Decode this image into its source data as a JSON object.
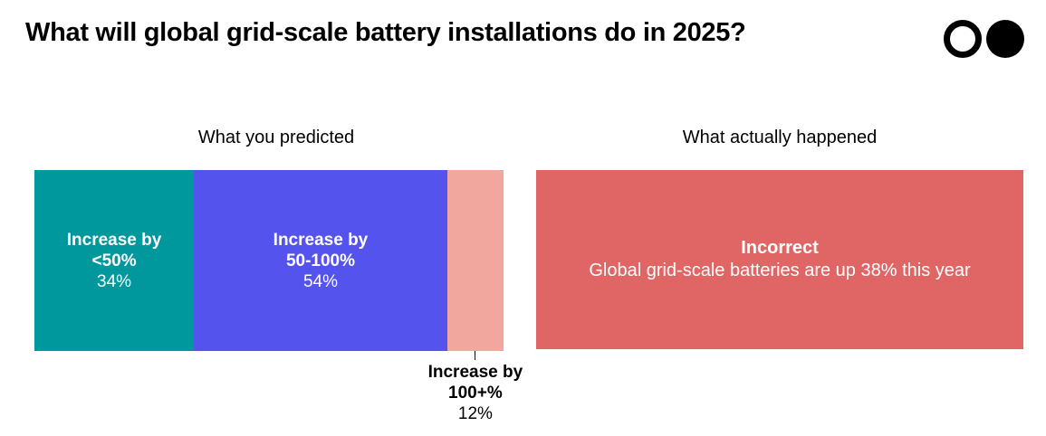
{
  "title": "What will global grid-scale battery installations do in 2025?",
  "logo_icon": "two-circles-logo",
  "chart_data": {
    "type": "bar",
    "stacked": true,
    "orientation": "horizontal",
    "panel_title": "What you predicted",
    "categories": [
      "Increase by <50%",
      "Increase by 50-100%",
      "Increase by 100+%"
    ],
    "segments": [
      {
        "label_line1": "Increase by",
        "label_line2": "<50%",
        "value": 34,
        "value_label": "34%",
        "color": "#00979d"
      },
      {
        "label_line1": "Increase by",
        "label_line2": "50-100%",
        "value": 54,
        "value_label": "54%",
        "color": "#5553ee"
      },
      {
        "label_line1": "Increase by",
        "label_line2": "100+%",
        "value": 12,
        "value_label": "12%",
        "color": "#f2a79e"
      }
    ],
    "xlim": [
      0,
      100
    ]
  },
  "result": {
    "panel_title": "What actually happened",
    "verdict": "Incorrect",
    "detail": "Global grid-scale batteries are up 38% this year",
    "color": "#e06666"
  }
}
